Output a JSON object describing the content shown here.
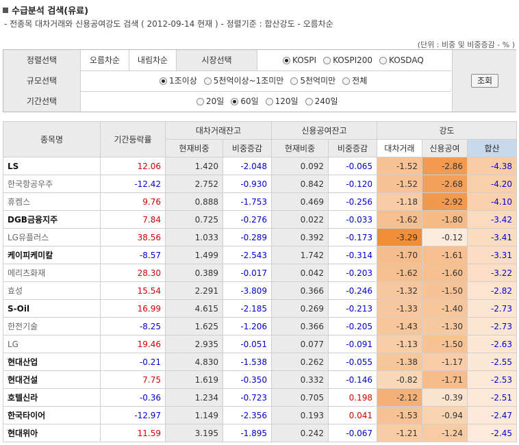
{
  "header": {
    "title": "수급분석 검색(유료)",
    "subtitle": "- 전종목 대차거래와 신용공여강도 검색 ( 2012-09-14 현재 ) - 정렬기준 : 합산강도 - 오름차순",
    "unit": "(단위 : 비중 및 비중증감 - % )"
  },
  "filters": {
    "sort": {
      "label": "정렬선택",
      "asc": "오름차순",
      "desc": "내림차순"
    },
    "market": {
      "label": "시장선택",
      "options": [
        "KOSPI",
        "KOSPI200",
        "KOSDAQ"
      ],
      "selected": 0
    },
    "size": {
      "label": "규모선택",
      "options": [
        "1조이상",
        "5천억이상~1조미만",
        "5천억미만",
        "전체"
      ],
      "selected": 0
    },
    "period": {
      "label": "기간선택",
      "options": [
        "20일",
        "60일",
        "120일",
        "240일"
      ],
      "selected": 1
    },
    "search_button": "조회"
  },
  "table": {
    "headers": {
      "name": "종목명",
      "change": "기간등락률",
      "loan": "대차거래잔고",
      "credit": "신용공여잔고",
      "strength": "강도",
      "cur": "현재비중",
      "chg": "비중증감",
      "s_loan": "대차거래",
      "s_credit": "신용공여",
      "s_sum": "합산"
    },
    "rows": [
      {
        "name": "LS",
        "chg": "12.06",
        "l_cur": "1.420",
        "l_chg": "-2.048",
        "c_cur": "0.092",
        "c_chg": "-0.065",
        "s1": "-1.52",
        "s2": "-2.86",
        "s3": "-4.38"
      },
      {
        "name": "한국항공우주",
        "chg": "-12.42",
        "l_cur": "2.752",
        "l_chg": "-0.930",
        "c_cur": "0.842",
        "c_chg": "-0.120",
        "s1": "-1.52",
        "s2": "-2.68",
        "s3": "-4.20"
      },
      {
        "name": "휴켐스",
        "chg": "9.76",
        "l_cur": "0.888",
        "l_chg": "-1.753",
        "c_cur": "0.469",
        "c_chg": "-0.256",
        "s1": "-1.18",
        "s2": "-2.92",
        "s3": "-4.10"
      },
      {
        "name": "DGB금융지주",
        "chg": "7.84",
        "l_cur": "0.725",
        "l_chg": "-0.276",
        "c_cur": "0.022",
        "c_chg": "-0.033",
        "s1": "-1.62",
        "s2": "-1.80",
        "s3": "-3.42"
      },
      {
        "name": "LG유플러스",
        "chg": "38.56",
        "l_cur": "1.033",
        "l_chg": "-0.289",
        "c_cur": "0.392",
        "c_chg": "-0.173",
        "s1": "-3.29",
        "s2": "-0.12",
        "s3": "-3.41"
      },
      {
        "name": "케이피케미칼",
        "chg": "-8.57",
        "l_cur": "1.499",
        "l_chg": "-2.543",
        "c_cur": "1.742",
        "c_chg": "-0.314",
        "s1": "-1.70",
        "s2": "-1.61",
        "s3": "-3.31"
      },
      {
        "name": "메리츠화재",
        "chg": "28.30",
        "l_cur": "0.389",
        "l_chg": "-0.017",
        "c_cur": "0.042",
        "c_chg": "-0.203",
        "s1": "-1.62",
        "s2": "-1.60",
        "s3": "-3.22"
      },
      {
        "name": "효성",
        "chg": "15.54",
        "l_cur": "2.291",
        "l_chg": "-3.809",
        "c_cur": "0.366",
        "c_chg": "-0.246",
        "s1": "-1.32",
        "s2": "-1.50",
        "s3": "-2.82"
      },
      {
        "name": "S-Oil",
        "chg": "16.99",
        "l_cur": "4.615",
        "l_chg": "-2.185",
        "c_cur": "0.269",
        "c_chg": "-0.213",
        "s1": "-1.33",
        "s2": "-1.40",
        "s3": "-2.73"
      },
      {
        "name": "한전기술",
        "chg": "-8.25",
        "l_cur": "1.625",
        "l_chg": "-1.206",
        "c_cur": "0.366",
        "c_chg": "-0.205",
        "s1": "-1.43",
        "s2": "-1.30",
        "s3": "-2.73"
      },
      {
        "name": "LG",
        "chg": "19.46",
        "l_cur": "2.935",
        "l_chg": "-0.051",
        "c_cur": "0.077",
        "c_chg": "-0.091",
        "s1": "-1.13",
        "s2": "-1.50",
        "s3": "-2.63"
      },
      {
        "name": "현대산업",
        "chg": "-0.21",
        "l_cur": "4.830",
        "l_chg": "-1.538",
        "c_cur": "0.262",
        "c_chg": "-0.055",
        "s1": "-1.38",
        "s2": "-1.17",
        "s3": "-2.55"
      },
      {
        "name": "현대건설",
        "chg": "7.75",
        "l_cur": "1.619",
        "l_chg": "-0.350",
        "c_cur": "0.332",
        "c_chg": "-0.146",
        "s1": "-0.82",
        "s2": "-1.71",
        "s3": "-2.53"
      },
      {
        "name": "호텔신라",
        "chg": "-0.36",
        "l_cur": "1.234",
        "l_chg": "-0.723",
        "c_cur": "0.705",
        "c_chg": "0.198",
        "s1": "-2.12",
        "s2": "-0.39",
        "s3": "-2.51"
      },
      {
        "name": "한국타이어",
        "chg": "-12.97",
        "l_cur": "1.149",
        "l_chg": "-2.356",
        "c_cur": "0.193",
        "c_chg": "0.041",
        "s1": "-1.53",
        "s2": "-0.94",
        "s3": "-2.47"
      },
      {
        "name": "현대위아",
        "chg": "11.59",
        "l_cur": "3.195",
        "l_chg": "-1.895",
        "c_cur": "0.242",
        "c_chg": "-0.067",
        "s1": "-1.21",
        "s2": "-1.24",
        "s3": "-2.45"
      }
    ]
  },
  "colors": {
    "positive": "#d00000",
    "negative": "#0000d0",
    "header_bg": "#ebebeb",
    "sum_header_bg": "#c9d9ec"
  }
}
